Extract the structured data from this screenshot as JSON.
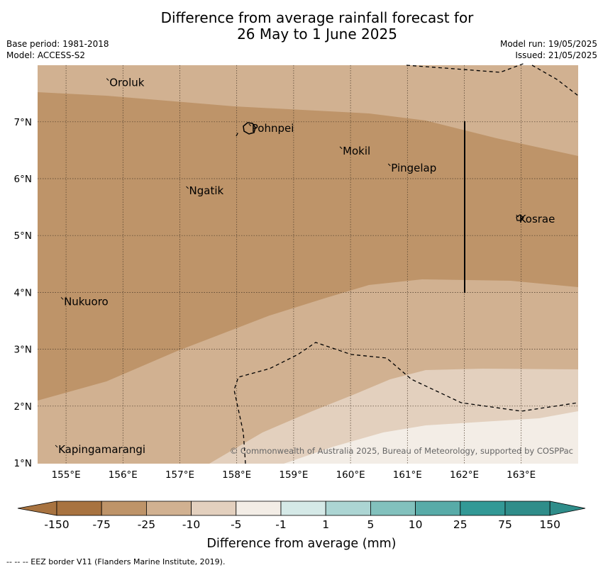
{
  "title": {
    "line1": "Difference from average rainfall forecast for",
    "line2": "26 May to 1 June 2025"
  },
  "meta": {
    "base_period": "Base period: 1981-2018",
    "model": "Model: ACCESS-S2",
    "model_run": "Model run: 19/05/2025",
    "issued": "Issued: 21/05/2025"
  },
  "map": {
    "longitude_ticks": [
      "155°E",
      "156°E",
      "157°E",
      "158°E",
      "159°E",
      "160°E",
      "161°E",
      "162°E",
      "163°E"
    ],
    "latitude_ticks": [
      "7°N",
      "6°N",
      "5°N",
      "4°N",
      "3°N",
      "2°N",
      "1°N"
    ],
    "places": [
      {
        "name": "Oroluk",
        "lon": 155.75,
        "lat": 7.7
      },
      {
        "name": "Pohnpei",
        "lon": 158.25,
        "lat": 6.9
      },
      {
        "name": "Mokil",
        "lon": 159.85,
        "lat": 6.5
      },
      {
        "name": "Pingelap",
        "lon": 160.7,
        "lat": 6.2
      },
      {
        "name": "Ngatik",
        "lon": 157.15,
        "lat": 5.8
      },
      {
        "name": "Kosrae",
        "lon": 162.95,
        "lat": 5.3
      },
      {
        "name": "Nukuoro",
        "lon": 154.95,
        "lat": 3.85
      },
      {
        "name": "Kapingamarangi",
        "lon": 154.85,
        "lat": 1.25
      }
    ],
    "attribution": "© Commonwealth of Australia 2025, Bureau of Meteorology, supported by COSPPac",
    "zone_colors": {
      "moderate_dry": "#be9469",
      "light_dry": "#d1b191",
      "slight_dry": "#e3d0be",
      "near_normal_dry": "#f3ede6"
    }
  },
  "colorbar": {
    "label": "Difference from average (mm)",
    "ticks": [
      "-150",
      "-75",
      "-25",
      "-10",
      "-5",
      "-1",
      "1",
      "5",
      "10",
      "25",
      "75",
      "150"
    ],
    "colors": [
      "#a87340",
      "#be9469",
      "#d1b191",
      "#e3d0be",
      "#f3ede6",
      "#ffffff",
      "#d5e9e7",
      "#acd5d3",
      "#82c1bd",
      "#58aba8",
      "#339996",
      "#2f8d8a"
    ]
  },
  "footer": "--  --  -- EEZ border V11 (Flanders Marine Institute, 2019)."
}
